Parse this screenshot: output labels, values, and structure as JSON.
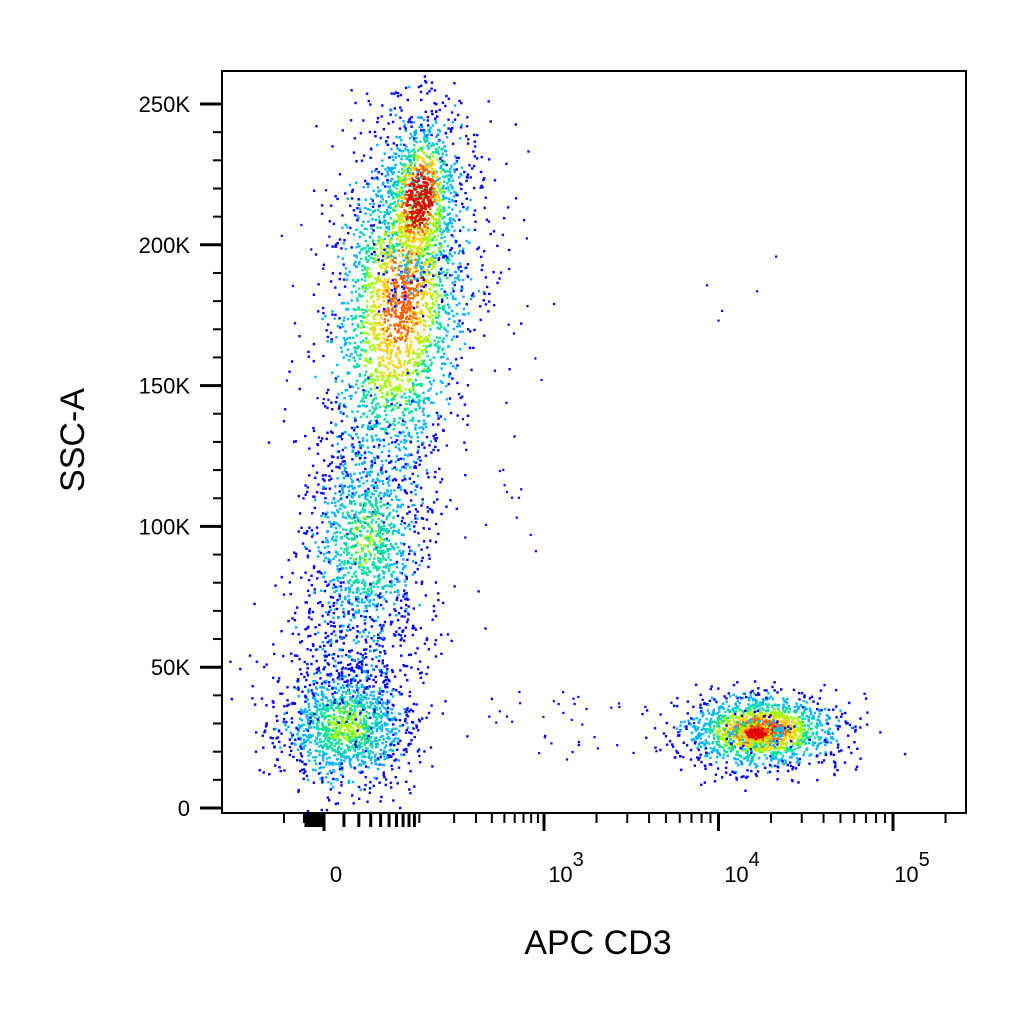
{
  "chart_data": {
    "type": "scatter",
    "style": "density-colored dot plot (flow cytometry)",
    "xlabel": "APC CD3",
    "ylabel": "SSC-A",
    "x_scale": "biexponential",
    "x_ticks": [
      {
        "value": 0,
        "label": "0"
      },
      {
        "value": 1000,
        "label": "10",
        "exp": "3"
      },
      {
        "value": 10000,
        "label": "10",
        "exp": "4"
      },
      {
        "value": 100000,
        "label": "10",
        "exp": "5"
      }
    ],
    "y_ticks": [
      {
        "value": 0,
        "label": "0"
      },
      {
        "value": 50000,
        "label": "50K"
      },
      {
        "value": 100000,
        "label": "100K"
      },
      {
        "value": 150000,
        "label": "150K"
      },
      {
        "value": 200000,
        "label": "200K"
      },
      {
        "value": 250000,
        "label": "250K"
      }
    ],
    "ylim": [
      -3000,
      262000
    ],
    "grid": false,
    "density_colors": [
      "#0000ff",
      "#00b4ff",
      "#00e0a0",
      "#a0ff00",
      "#ffd200",
      "#ff6000",
      "#e00000"
    ],
    "populations": [
      {
        "id": "granulocytes",
        "x_center": 150,
        "y_center": 190000,
        "density": "high"
      },
      {
        "id": "monocytes",
        "x_center": 60,
        "y_center": 95000,
        "density": "medium"
      },
      {
        "id": "cd3-negative-lymphocytes",
        "x_center": 5,
        "y_center": 30000,
        "density": "medium"
      },
      {
        "id": "cd3-positive-t-cells",
        "x_center": 14000,
        "y_center": 27000,
        "density": "high"
      }
    ]
  }
}
